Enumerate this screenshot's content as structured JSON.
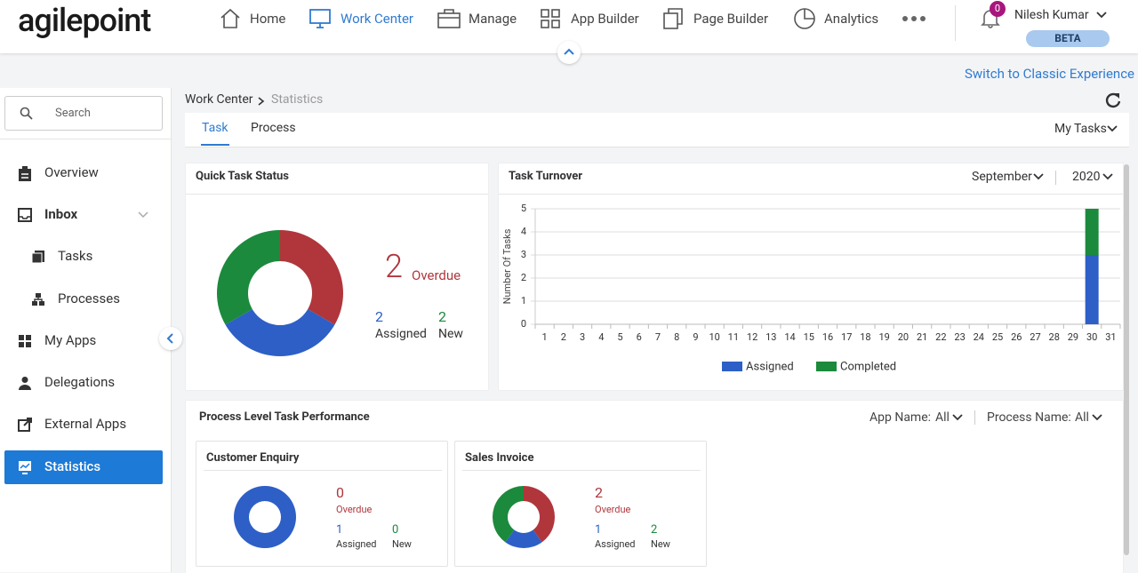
{
  "header": {
    "logo": "agilepoint",
    "nav": [
      "Home",
      "Work Center",
      "Manage",
      "App Builder",
      "Page Builder",
      "Analytics"
    ],
    "notifications": 0,
    "user": "Nilesh Kumar",
    "badge": "BETA"
  },
  "switch_link": "Switch to Classic Experience",
  "sidebar": {
    "search": "Search",
    "items": [
      "Overview",
      "Inbox",
      "Tasks",
      "Processes",
      "My Apps",
      "Delegations",
      "External Apps",
      "Statistics"
    ]
  },
  "breadcrumb": [
    "Work Center",
    "Statistics"
  ],
  "tabs": [
    "Task",
    "Process"
  ],
  "task_filter": "My Tasks",
  "status_labels": {
    "overdue": "Overdue",
    "assigned": "Assigned",
    "new": "New"
  },
  "status_colors": {
    "overdue": "#b0363c",
    "assigned": "#2d5fc6",
    "new": "#1b8a3c"
  },
  "quick_status": {
    "title": "Quick Task Status",
    "overdue": 2,
    "assigned": 2,
    "new": 2
  },
  "turnover": {
    "title": "Task Turnover",
    "month": "September",
    "year": "2020"
  },
  "chart_data": {
    "type": "bar",
    "y_label": "Number Of Tasks",
    "categories": [
      1,
      2,
      3,
      4,
      5,
      6,
      7,
      8,
      9,
      10,
      11,
      12,
      13,
      14,
      15,
      16,
      17,
      18,
      19,
      20,
      21,
      22,
      23,
      24,
      25,
      26,
      27,
      28,
      29,
      30,
      31
    ],
    "stacked": true,
    "series": [
      {
        "name": "Assigned",
        "color": "#2d5fc6",
        "values": [
          0,
          0,
          0,
          0,
          0,
          0,
          0,
          0,
          0,
          0,
          0,
          0,
          0,
          0,
          0,
          0,
          0,
          0,
          0,
          0,
          0,
          0,
          0,
          0,
          0,
          0,
          0,
          0,
          0,
          3,
          0
        ]
      },
      {
        "name": "Completed",
        "color": "#1b8a3c",
        "values": [
          0,
          0,
          0,
          0,
          0,
          0,
          0,
          0,
          0,
          0,
          0,
          0,
          0,
          0,
          0,
          0,
          0,
          0,
          0,
          0,
          0,
          0,
          0,
          0,
          0,
          0,
          0,
          0,
          0,
          2,
          0
        ]
      }
    ],
    "ylim": [
      0,
      5
    ],
    "yticks": [
      0,
      1,
      2,
      3,
      4,
      5
    ],
    "grid": true
  },
  "process_performance": {
    "title": "Process Level Task Performance",
    "app_label": "App Name:",
    "app_value": "All",
    "process_label": "Process Name:",
    "process_value": "All",
    "cards": [
      {
        "title": "Customer Enquiry",
        "overdue": 0,
        "assigned": 1,
        "new": 0
      },
      {
        "title": "Sales Invoice",
        "overdue": 2,
        "assigned": 1,
        "new": 2
      }
    ]
  }
}
